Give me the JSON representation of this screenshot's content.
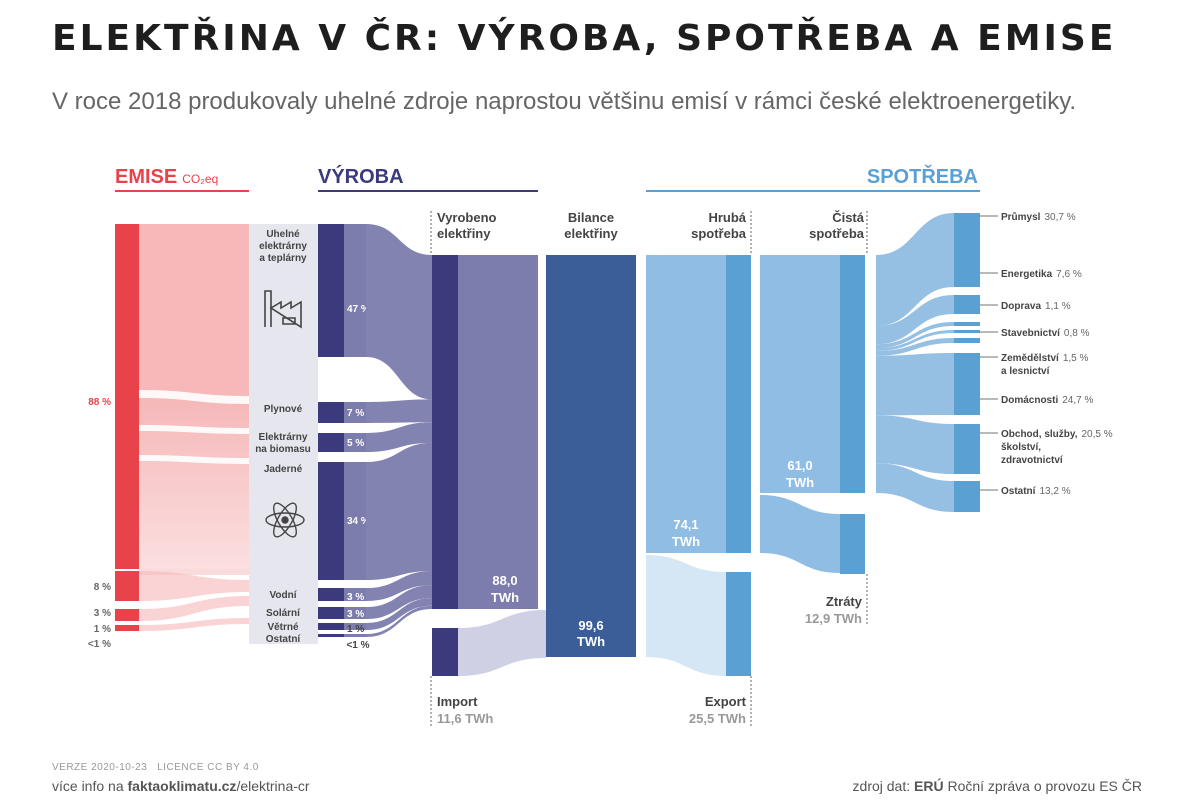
{
  "title": "ELEKTŘINA V ČR: VÝROBA, SPOTŘEBA A EMISE",
  "subtitle": "V roce 2018 produkovaly uhelné zdroje naprostou většinu emisí v rámci české elektroenergetiky.",
  "colors": {
    "emise": "#e8424a",
    "emise_light": "#f6b8b9",
    "vyroba": "#3a3a7c",
    "vyroba_light": "#7c7cad",
    "bilance": "#3b5e98",
    "spotreba": "#5aa0d2",
    "spotreba_light": "#8fbde3",
    "spotreba_pale": "#d5e7f5",
    "import_pale": "#cfd0e3",
    "gray_panel": "#e6e7ee"
  },
  "headers": {
    "emise": "EMISE",
    "emise_unit": "CO₂eq",
    "vyroba": "VÝROBA",
    "spotreba": "SPOTŘEBA"
  },
  "column_titles": {
    "vyrobeno": [
      "Vyrobeno",
      "elektřiny"
    ],
    "bilance": [
      "Bilance",
      "elektřiny"
    ],
    "hruba": [
      "Hrubá",
      "spotřeba"
    ],
    "cista": [
      "Čistá",
      "spotřeba"
    ]
  },
  "chart_data": {
    "type": "sankey",
    "emissions_shares": [
      {
        "source": "Uhelné elektrárny a teplárny",
        "value": "88 %"
      },
      {
        "source": "Plynové",
        "value": "8 %"
      },
      {
        "source": "Elektrárny na biomasu",
        "value": "3 %"
      },
      {
        "source": "Ostatní",
        "value": "1 %"
      },
      {
        "source": "other",
        "value": "<1 %"
      }
    ],
    "production_shares": [
      {
        "source": "Uhelné elektrárny a teplárny",
        "value": "47 %",
        "label_lines": [
          "Uhelné",
          "elektrárny",
          "a teplárny"
        ]
      },
      {
        "source": "Plynové",
        "value": "7 %",
        "label_lines": [
          "Plynové"
        ]
      },
      {
        "source": "Elektrárny na biomasu",
        "value": "5 %",
        "label_lines": [
          "Elektrárny",
          "na biomasu"
        ]
      },
      {
        "source": "Jaderné",
        "value": "34 %",
        "label_lines": [
          "Jaderné"
        ]
      },
      {
        "source": "Vodní",
        "value": "3 %",
        "label_lines": [
          "Vodní"
        ]
      },
      {
        "source": "Solární",
        "value": "3 %",
        "label_lines": [
          "Solární"
        ]
      },
      {
        "source": "Větrné",
        "value": "1 %",
        "label_lines": [
          "Větrné"
        ]
      },
      {
        "source": "Ostatní",
        "value": "<1 %",
        "label_lines": [
          "Ostatní"
        ]
      }
    ],
    "vyrobeno": {
      "value": "88,0",
      "unit": "TWh"
    },
    "import": {
      "label": "Import",
      "value": "11,6 TWh"
    },
    "bilance": {
      "value": "99,6",
      "unit": "TWh"
    },
    "hruba_spotreba": {
      "value": "74,1",
      "unit": "TWh"
    },
    "export": {
      "label": "Export",
      "value": "25,5 TWh"
    },
    "cista_spotreba": {
      "value": "61,0",
      "unit": "TWh"
    },
    "ztraty": {
      "label": "Ztráty",
      "value": "12,9 TWh"
    },
    "consumption_shares": [
      {
        "sector": "Průmysl",
        "value": "30,7 %",
        "label_lines": [
          "Průmysl"
        ]
      },
      {
        "sector": "Energetika",
        "value": "7,6 %",
        "label_lines": [
          "Energetika"
        ]
      },
      {
        "sector": "Doprava",
        "value": "1,1 %",
        "label_lines": [
          "Doprava"
        ]
      },
      {
        "sector": "Stavebnictví",
        "value": "0,8 %",
        "label_lines": [
          "Stavebnictví"
        ]
      },
      {
        "sector": "Zemědělství a lesnictví",
        "value": "1,5 %",
        "label_lines": [
          "Zemědělství",
          "a lesnictví"
        ]
      },
      {
        "sector": "Domácnosti",
        "value": "24,7 %",
        "label_lines": [
          "Domácnosti"
        ]
      },
      {
        "sector": "Obchod, služby, školství, zdravotnictví",
        "value": "20,5 %",
        "label_lines": [
          "Obchod, služby,",
          "školství,",
          "zdravotnictví"
        ]
      },
      {
        "sector": "Ostatní",
        "value": "13,2 %",
        "label_lines": [
          "Ostatní"
        ]
      }
    ]
  },
  "footer": {
    "version": "VERZE 2020-10-23",
    "license": "LICENCE CC BY 4.0",
    "more_prefix": "více info na ",
    "more_site": "faktaoklimatu.cz",
    "more_path": "/elektrina-cr",
    "source_prefix": "zdroj dat: ",
    "source_org": "ERÚ",
    "source_doc": " Roční zpráva o provozu ES ČR"
  }
}
